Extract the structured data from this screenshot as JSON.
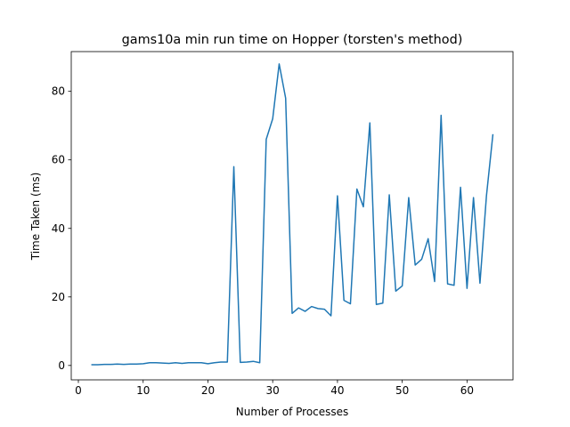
{
  "chart_data": {
    "type": "line",
    "title": "gams10a min run time on Hopper (torsten's method)",
    "x_label": "Number of Processes",
    "y_label": "Time Taken (ms)",
    "x": [
      2,
      3,
      4,
      5,
      6,
      7,
      8,
      9,
      10,
      11,
      12,
      13,
      14,
      15,
      16,
      17,
      18,
      19,
      20,
      21,
      22,
      23,
      24,
      25,
      26,
      27,
      28,
      29,
      30,
      31,
      32,
      33,
      34,
      35,
      36,
      37,
      38,
      39,
      40,
      41,
      42,
      43,
      44,
      45,
      46,
      47,
      48,
      49,
      50,
      51,
      52,
      53,
      54,
      55,
      56,
      57,
      58,
      59,
      60,
      61,
      62,
      63,
      64
    ],
    "series": [
      {
        "color": "#1f77b4",
        "values": [
          0.2,
          0.2,
          0.3,
          0.3,
          0.4,
          0.3,
          0.4,
          0.4,
          0.5,
          0.8,
          0.8,
          0.7,
          0.6,
          0.8,
          0.6,
          0.8,
          0.8,
          0.8,
          0.5,
          0.8,
          1.0,
          1.0,
          58,
          0.9,
          1.0,
          1.2,
          0.8,
          66,
          72,
          88,
          78,
          15.2,
          16.8,
          15.8,
          17.2,
          16.6,
          16.4,
          14.5,
          49.5,
          19,
          18,
          51.5,
          46.3,
          70.8,
          17.8,
          18.2,
          49.8,
          21.7,
          23.2,
          49,
          29.3,
          31,
          37,
          24.5,
          73,
          23.8,
          23.4,
          52,
          22.5,
          49,
          24,
          49.5,
          67.5
        ]
      }
    ],
    "xlim": [
      -1.1,
      67.1
    ],
    "xticks": [
      0,
      10,
      20,
      30,
      40,
      50,
      60
    ],
    "ylim": [
      -4.2,
      91.6
    ],
    "yticks": [
      0,
      20,
      40,
      60,
      80
    ]
  }
}
